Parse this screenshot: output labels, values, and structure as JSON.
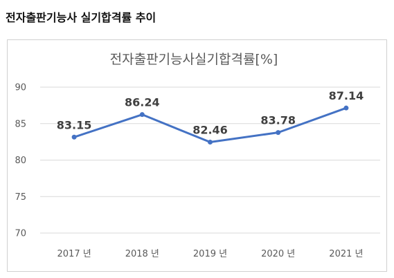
{
  "page": {
    "heading": "전자출판기능사 실기합격률 추이"
  },
  "chart_data": {
    "type": "line",
    "title": "전자출판기능사실기합격률[%]",
    "categories": [
      "2017 년",
      "2018 년",
      "2019 년",
      "2020 년",
      "2021 년"
    ],
    "series": [
      {
        "values": [
          83.15,
          86.24,
          82.46,
          83.78,
          87.14
        ],
        "labels": [
          "83.15",
          "86.24",
          "82.46",
          "83.78",
          "87.14"
        ]
      }
    ],
    "ylim": [
      70,
      90
    ],
    "yticks": [
      70,
      75,
      80,
      85,
      90
    ],
    "ytick_labels": [
      "70",
      "75",
      "80",
      "85",
      "90"
    ],
    "grid": true,
    "legend": "none",
    "colors": {
      "line": "#4472C4",
      "grid": "#d9d9d9"
    }
  }
}
